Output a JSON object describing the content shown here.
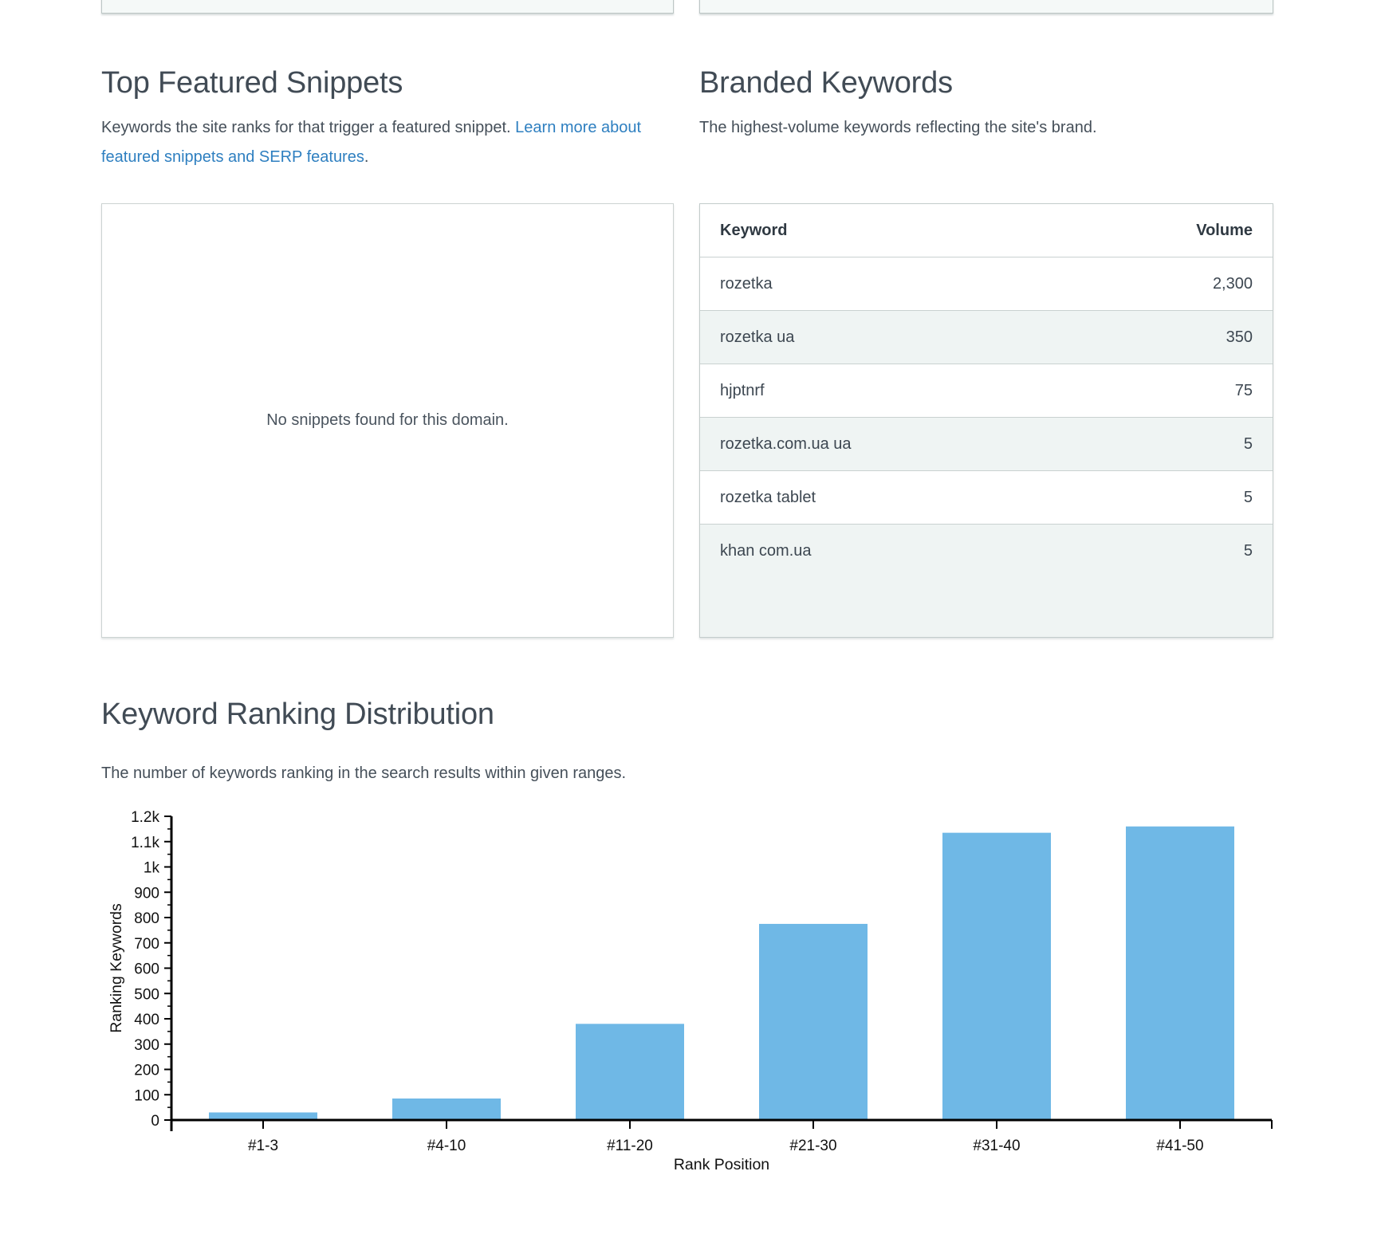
{
  "sections": {
    "snippets": {
      "title": "Top Featured Snippets",
      "description_plain": "Keywords the site ranks for that trigger a featured snippet. ",
      "description_link": "Learn more about featured snippets and SERP features",
      "description_suffix": ".",
      "empty_message": "No snippets found for this domain."
    },
    "branded": {
      "title": "Branded Keywords",
      "description": "The highest-volume keywords reflecting the site's brand.",
      "table": {
        "columns": [
          "Keyword",
          "Volume"
        ],
        "rows": [
          {
            "keyword": "rozetka",
            "volume": "2,300"
          },
          {
            "keyword": "rozetka ua",
            "volume": "350"
          },
          {
            "keyword": "hjptnrf",
            "volume": "75"
          },
          {
            "keyword": "rozetka.com.ua ua",
            "volume": "5"
          },
          {
            "keyword": "rozetka tablet",
            "volume": "5"
          },
          {
            "keyword": "khan com.ua",
            "volume": "5"
          }
        ]
      }
    },
    "distribution": {
      "title": "Keyword Ranking Distribution",
      "description": "The number of keywords ranking in the search results within given ranges."
    }
  },
  "chart_data": {
    "type": "bar",
    "categories": [
      "#1-3",
      "#4-10",
      "#11-20",
      "#21-30",
      "#31-40",
      "#41-50"
    ],
    "values": [
      30,
      85,
      380,
      775,
      1135,
      1160
    ],
    "title": "",
    "xlabel": "Rank Position",
    "ylabel": "Ranking Keywords",
    "ylim": [
      0,
      1200
    ],
    "ytick_step": 100,
    "ytick_labels": [
      "0",
      "100",
      "200",
      "300",
      "400",
      "500",
      "600",
      "700",
      "800",
      "900",
      "1k",
      "1.1k",
      "1.2k"
    ],
    "grid": false,
    "legend": null
  },
  "colors": {
    "bar": "#6fb8e6",
    "link": "#2e7fc0",
    "stripe": "#eff4f3",
    "box_border": "#c3cccb",
    "heading": "#414b55",
    "text": "#454f59",
    "axis": "#000000"
  }
}
